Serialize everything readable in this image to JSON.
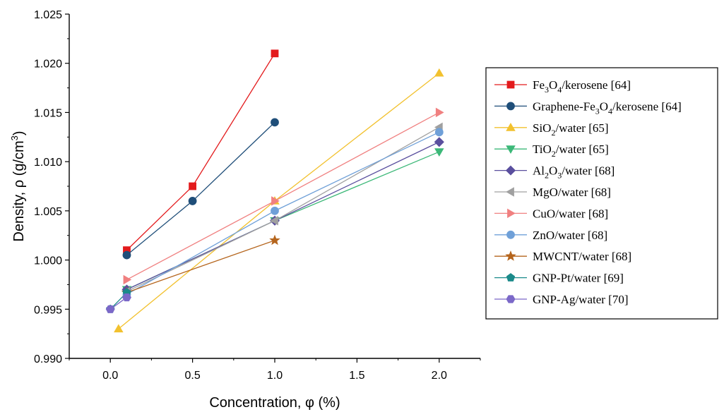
{
  "chart_data": {
    "type": "line",
    "xlabel": "Concentration, φ (%)",
    "ylabel": "Density, ρ (g/cm³)",
    "ylabel_parts": {
      "main": "Density, ρ (g/cm",
      "sup": "3",
      "close": ")"
    },
    "xlim": [
      -0.25,
      2.25
    ],
    "ylim": [
      0.99,
      1.025
    ],
    "xticks": [
      0.0,
      0.5,
      1.0,
      1.5,
      2.0
    ],
    "xtick_labels": [
      "0.0",
      "0.5",
      "1.0",
      "1.5",
      "2.0"
    ],
    "yticks": [
      0.99,
      0.995,
      1.0,
      1.005,
      1.01,
      1.015,
      1.02,
      1.025
    ],
    "ytick_labels": [
      "0.990",
      "0.995",
      "1.000",
      "1.005",
      "1.010",
      "1.015",
      "1.020",
      "1.025"
    ],
    "grid": false,
    "legend_position": "right",
    "series": [
      {
        "name": "Fe3O4/kerosene [64]",
        "label_parts": [
          [
            "Fe",
            ""
          ],
          [
            "3",
            "sub"
          ],
          [
            "O",
            ""
          ],
          [
            "4",
            "sub"
          ],
          [
            "/kerosene [64]",
            ""
          ]
        ],
        "color": "#e31a1c",
        "marker": "square",
        "x": [
          0.1,
          0.5,
          1.0
        ],
        "y": [
          1.001,
          1.0075,
          1.021
        ]
      },
      {
        "name": "Graphene-Fe3O4/kerosene [64]",
        "label_parts": [
          [
            "Graphene-Fe",
            ""
          ],
          [
            "3",
            "sub"
          ],
          [
            "O",
            ""
          ],
          [
            "4",
            "sub"
          ],
          [
            "/kerosene [64]",
            ""
          ]
        ],
        "color": "#1f4e79",
        "marker": "circle",
        "x": [
          0.1,
          0.5,
          1.0
        ],
        "y": [
          1.0005,
          1.006,
          1.014
        ]
      },
      {
        "name": "SiO2/water [65]",
        "label_parts": [
          [
            "SiO",
            ""
          ],
          [
            "2",
            "sub"
          ],
          [
            "/water [65]",
            ""
          ]
        ],
        "color": "#f2c12e",
        "marker": "triangle-up",
        "x": [
          0.05,
          1.0,
          2.0
        ],
        "y": [
          0.993,
          1.006,
          1.019
        ]
      },
      {
        "name": "TiO2/water [65]",
        "label_parts": [
          [
            "TiO",
            ""
          ],
          [
            "2",
            "sub"
          ],
          [
            "/water [65]",
            ""
          ]
        ],
        "color": "#3cb878",
        "marker": "triangle-down",
        "x": [
          0.1,
          1.0,
          2.0
        ],
        "y": [
          0.997,
          1.004,
          1.011
        ]
      },
      {
        "name": "Al2O3/water [68]",
        "label_parts": [
          [
            "Al",
            ""
          ],
          [
            "2",
            "sub"
          ],
          [
            "O",
            ""
          ],
          [
            "3",
            "sub"
          ],
          [
            "/water [68]",
            ""
          ]
        ],
        "color": "#5a4f9e",
        "marker": "diamond",
        "x": [
          0.1,
          1.0,
          2.0
        ],
        "y": [
          0.997,
          1.004,
          1.012
        ]
      },
      {
        "name": "MgO/water [68]",
        "label_parts": [
          [
            "MgO/water [68]",
            ""
          ]
        ],
        "color": "#a0a0a0",
        "marker": "triangle-left",
        "x": [
          0.1,
          1.0,
          2.0
        ],
        "y": [
          0.9968,
          1.004,
          1.0135
        ]
      },
      {
        "name": "CuO/water [68]",
        "label_parts": [
          [
            "CuO/water [68]",
            ""
          ]
        ],
        "color": "#f08080",
        "marker": "triangle-right",
        "x": [
          0.1,
          1.0,
          2.0
        ],
        "y": [
          0.998,
          1.006,
          1.015
        ]
      },
      {
        "name": "ZnO/water [68]",
        "label_parts": [
          [
            "ZnO/water [68]",
            ""
          ]
        ],
        "color": "#6fa0d8",
        "marker": "circle",
        "x": [
          0.1,
          1.0,
          2.0
        ],
        "y": [
          0.9965,
          1.005,
          1.013
        ]
      },
      {
        "name": "MWCNT/water [68]",
        "label_parts": [
          [
            "MWCNT/water [68]",
            ""
          ]
        ],
        "color": "#b5651d",
        "marker": "star",
        "x": [
          0.1,
          1.0
        ],
        "y": [
          0.9967,
          1.002
        ]
      },
      {
        "name": "GNP-Pt/water [69]",
        "label_parts": [
          [
            "GNP-Pt/water [69]",
            ""
          ]
        ],
        "color": "#1b8a8a",
        "marker": "pentagon",
        "x": [
          0.0,
          0.1
        ],
        "y": [
          0.995,
          0.9967
        ]
      },
      {
        "name": "GNP-Ag/water [70]",
        "label_parts": [
          [
            "GNP-Ag/water [70]",
            ""
          ]
        ],
        "color": "#7b68c8",
        "marker": "hexagon",
        "x": [
          0.0,
          0.1
        ],
        "y": [
          0.995,
          0.9962
        ]
      }
    ]
  }
}
